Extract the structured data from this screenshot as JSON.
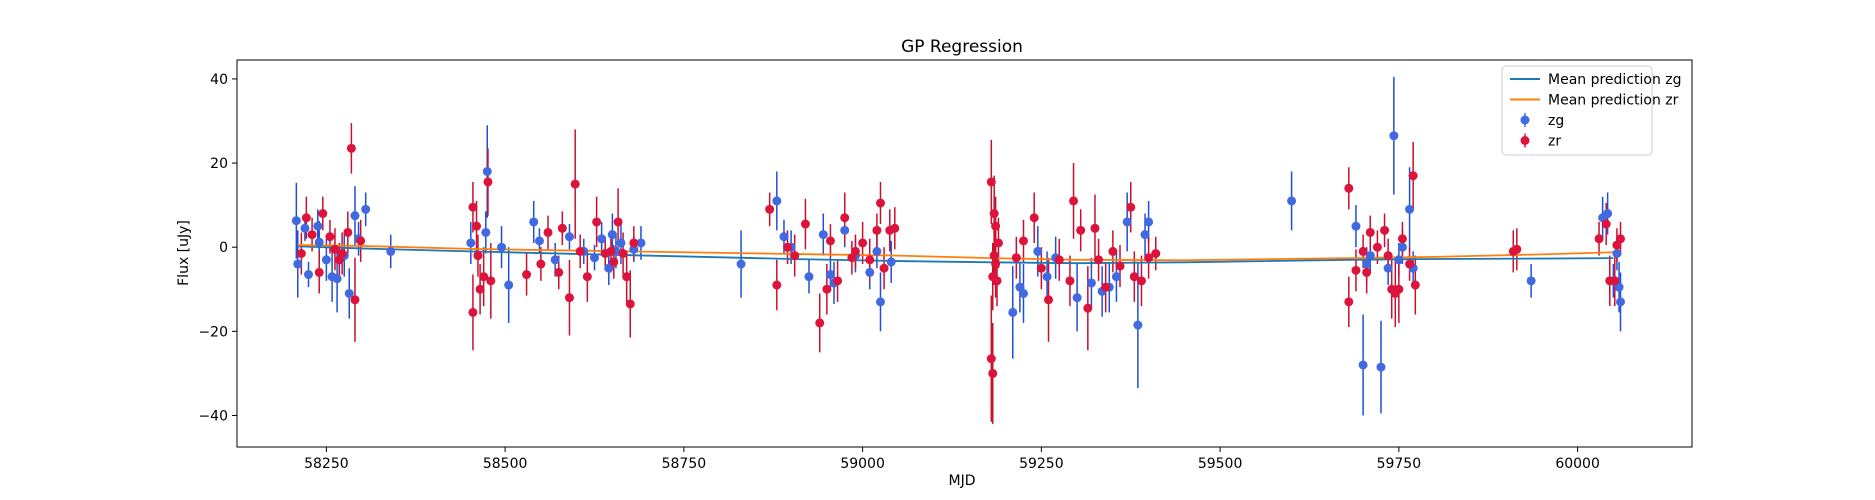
{
  "chart_data": {
    "type": "scatter",
    "title": "GP Regression",
    "xlabel": "MJD",
    "ylabel": "Flux [uJy]",
    "xlim": [
      58125,
      60160
    ],
    "ylim": [
      -47.5,
      44.5
    ],
    "xticks": [
      58250,
      58500,
      58750,
      59000,
      59250,
      59500,
      59750,
      60000
    ],
    "yticks": [
      -40,
      -20,
      0,
      20,
      40
    ],
    "grid": false,
    "legend_position": "top-right",
    "colors": {
      "zg_line": "#1f77b4",
      "zr_line": "#ff7f0e",
      "zg_points": "#4169e1",
      "zr_points": "#dc143c",
      "zg_errorbars": "#1f4fd6",
      "zr_errorbars": "#c8102e"
    },
    "lines": [
      {
        "name": "Mean prediction zg",
        "x": [
          58210,
          58300,
          58450,
          58600,
          58750,
          58900,
          59050,
          59180,
          59300,
          59450,
          59680,
          59800,
          59950,
          60050
        ],
        "y": [
          0.2,
          -0.3,
          -1.0,
          -1.6,
          -2.2,
          -2.8,
          -3.3,
          -3.6,
          -3.8,
          -3.6,
          -3.0,
          -2.8,
          -2.7,
          -2.6
        ]
      },
      {
        "name": "Mean prediction zr",
        "x": [
          58210,
          58300,
          58450,
          58600,
          58750,
          58900,
          59050,
          59180,
          59300,
          59450,
          59680,
          59800,
          59950,
          60050
        ],
        "y": [
          0.5,
          0.3,
          -0.4,
          -0.8,
          -1.2,
          -1.6,
          -2.0,
          -2.6,
          -3.0,
          -3.1,
          -2.6,
          -2.3,
          -1.7,
          -1.2
        ]
      }
    ],
    "series": [
      {
        "name": "zg",
        "points": [
          [
            58208,
            6.3,
            9
          ],
          [
            58210,
            -4.0,
            8
          ],
          [
            58220,
            4.5,
            3
          ],
          [
            58225,
            -6.5,
            3
          ],
          [
            58238,
            5.0,
            4
          ],
          [
            58240,
            1.2,
            5
          ],
          [
            58250,
            -3.0,
            5
          ],
          [
            58258,
            -7.0,
            6
          ],
          [
            58265,
            -7.5,
            8
          ],
          [
            58275,
            -2.0,
            5
          ],
          [
            58282,
            -11.0,
            6
          ],
          [
            58290,
            7.5,
            7
          ],
          [
            58295,
            2.0,
            4
          ],
          [
            58305,
            9.0,
            4
          ],
          [
            58340,
            -1.0,
            4
          ],
          [
            58452,
            1.0,
            5
          ],
          [
            58475,
            18.0,
            11
          ],
          [
            58473,
            3.5,
            5
          ],
          [
            58495,
            0.0,
            5
          ],
          [
            58505,
            -9.0,
            9
          ],
          [
            58540,
            6.0,
            5
          ],
          [
            58548,
            1.5,
            3
          ],
          [
            58570,
            -3.0,
            4
          ],
          [
            58590,
            2.5,
            3
          ],
          [
            58610,
            -1.0,
            3
          ],
          [
            58625,
            -2.5,
            3
          ],
          [
            58635,
            2.0,
            4
          ],
          [
            58645,
            -5.0,
            4
          ],
          [
            58650,
            3.0,
            5
          ],
          [
            58655,
            -1.0,
            4
          ],
          [
            58662,
            1.0,
            5
          ],
          [
            58680,
            -0.5,
            3
          ],
          [
            58690,
            1.0,
            4
          ],
          [
            58830,
            -4.0,
            8
          ],
          [
            58880,
            11.0,
            7
          ],
          [
            58890,
            2.5,
            4
          ],
          [
            58900,
            0.0,
            4
          ],
          [
            58925,
            -7.0,
            4
          ],
          [
            58945,
            3.0,
            5
          ],
          [
            58955,
            -6.5,
            4
          ],
          [
            58960,
            -8.5,
            5
          ],
          [
            58975,
            4.0,
            4
          ],
          [
            58990,
            -2.0,
            4
          ],
          [
            59010,
            -6.0,
            4
          ],
          [
            59020,
            -1.0,
            4
          ],
          [
            59025,
            -13.0,
            7
          ],
          [
            59040,
            -3.5,
            5
          ],
          [
            59210,
            -15.5,
            11
          ],
          [
            59220,
            -9.5,
            6
          ],
          [
            59225,
            -11.0,
            7
          ],
          [
            59245,
            -1.0,
            6
          ],
          [
            59258,
            -7.0,
            6
          ],
          [
            59270,
            -2.5,
            5
          ],
          [
            59300,
            -12.0,
            8
          ],
          [
            59320,
            -8.5,
            6
          ],
          [
            59335,
            -10.5,
            6
          ],
          [
            59345,
            -9.5,
            6
          ],
          [
            59355,
            -7.0,
            6
          ],
          [
            59370,
            6.0,
            7
          ],
          [
            59385,
            -18.5,
            15
          ],
          [
            59395,
            3.0,
            5
          ],
          [
            59400,
            6.0,
            5
          ],
          [
            59600,
            11.0,
            7
          ],
          [
            59690,
            5.0,
            5
          ],
          [
            59700,
            -28.0,
            12
          ],
          [
            59705,
            -4.0,
            4
          ],
          [
            59710,
            -2.0,
            4
          ],
          [
            59725,
            -28.5,
            11
          ],
          [
            59735,
            -5.0,
            4
          ],
          [
            59743,
            26.5,
            14
          ],
          [
            59750,
            -3.0,
            4
          ],
          [
            59755,
            0.0,
            4
          ],
          [
            59765,
            9.0,
            10
          ],
          [
            59770,
            -5.0,
            4
          ],
          [
            59935,
            -8.0,
            4
          ],
          [
            60035,
            7.0,
            5
          ],
          [
            60042,
            8.0,
            5
          ],
          [
            60050,
            -8.0,
            4
          ],
          [
            60055,
            -1.5,
            4
          ],
          [
            60058,
            -9.5,
            6
          ],
          [
            60060,
            -13.0,
            7
          ]
        ]
      },
      {
        "name": "zr",
        "points": [
          [
            58215,
            -1.5,
            5
          ],
          [
            58222,
            7.0,
            5
          ],
          [
            58230,
            3.0,
            4
          ],
          [
            58240,
            -6.0,
            5
          ],
          [
            58245,
            8.0,
            4
          ],
          [
            58255,
            2.5,
            4
          ],
          [
            58262,
            -0.5,
            5
          ],
          [
            58268,
            -3.0,
            4
          ],
          [
            58272,
            -1.5,
            5
          ],
          [
            58280,
            3.5,
            5
          ],
          [
            58285,
            23.5,
            6
          ],
          [
            58290,
            -12.5,
            10
          ],
          [
            58298,
            1.5,
            5
          ],
          [
            58455,
            9.5,
            6
          ],
          [
            58455,
            -15.5,
            9
          ],
          [
            58460,
            5.0,
            6
          ],
          [
            58462,
            -2.0,
            5
          ],
          [
            58465,
            -10.0,
            6
          ],
          [
            58470,
            -7.0,
            7
          ],
          [
            58476,
            15.5,
            8
          ],
          [
            58480,
            -8.0,
            9
          ],
          [
            58530,
            -6.5,
            5
          ],
          [
            58550,
            -4.0,
            4
          ],
          [
            58560,
            3.5,
            4
          ],
          [
            58575,
            -6.0,
            4
          ],
          [
            58580,
            4.5,
            4
          ],
          [
            58590,
            -12.0,
            9
          ],
          [
            58598,
            15.0,
            13
          ],
          [
            58605,
            -1.0,
            4
          ],
          [
            58615,
            -7.0,
            6
          ],
          [
            58628,
            6.0,
            6
          ],
          [
            58640,
            -1.5,
            4
          ],
          [
            58648,
            -1.0,
            5
          ],
          [
            58652,
            -3.5,
            4
          ],
          [
            58658,
            6.0,
            8
          ],
          [
            58665,
            -1.5,
            5
          ],
          [
            58670,
            -7.0,
            6
          ],
          [
            58675,
            -13.5,
            8
          ],
          [
            58680,
            1.0,
            4
          ],
          [
            58870,
            9.0,
            4
          ],
          [
            58880,
            -9.0,
            6
          ],
          [
            58895,
            0.0,
            4
          ],
          [
            58905,
            -2.0,
            5
          ],
          [
            58920,
            5.5,
            6
          ],
          [
            58940,
            -18.0,
            7
          ],
          [
            58950,
            -10.0,
            6
          ],
          [
            58955,
            1.5,
            4
          ],
          [
            58965,
            -8.0,
            5
          ],
          [
            58975,
            7.0,
            6
          ],
          [
            58985,
            -2.5,
            4
          ],
          [
            58990,
            -1.0,
            4
          ],
          [
            59000,
            1.0,
            5
          ],
          [
            59010,
            -3.0,
            5
          ],
          [
            59020,
            4.0,
            4
          ],
          [
            59025,
            10.5,
            5
          ],
          [
            59030,
            -5.0,
            5
          ],
          [
            59038,
            4.0,
            5
          ],
          [
            59045,
            4.5,
            5
          ],
          [
            59180,
            15.5,
            10
          ],
          [
            59180,
            -26.5,
            15
          ],
          [
            59182,
            -30.0,
            12
          ],
          [
            59182,
            -7.0,
            8
          ],
          [
            59184,
            8.0,
            9
          ],
          [
            59184,
            -2.0,
            7
          ],
          [
            59186,
            -4.0,
            8
          ],
          [
            59186,
            5.0,
            7
          ],
          [
            59188,
            -8.0,
            6
          ],
          [
            59190,
            1.0,
            6
          ],
          [
            59215,
            -2.5,
            5
          ],
          [
            59225,
            1.5,
            5
          ],
          [
            59240,
            7.0,
            6
          ],
          [
            59250,
            -5.0,
            5
          ],
          [
            59260,
            -12.5,
            10
          ],
          [
            59275,
            -3.0,
            5
          ],
          [
            59290,
            -8.0,
            6
          ],
          [
            59295,
            11.0,
            9
          ],
          [
            59305,
            4.0,
            5
          ],
          [
            59315,
            -14.5,
            10
          ],
          [
            59325,
            4.5,
            8
          ],
          [
            59330,
            -3.0,
            5
          ],
          [
            59340,
            -9.5,
            6
          ],
          [
            59350,
            -1.0,
            5
          ],
          [
            59360,
            -4.5,
            5
          ],
          [
            59375,
            9.5,
            6
          ],
          [
            59380,
            -7.0,
            6
          ],
          [
            59390,
            -8.0,
            6
          ],
          [
            59400,
            -2.5,
            5
          ],
          [
            59410,
            -1.5,
            4
          ],
          [
            59680,
            14.0,
            5
          ],
          [
            59680,
            -13.0,
            6
          ],
          [
            59690,
            -5.5,
            5
          ],
          [
            59700,
            -1.0,
            4
          ],
          [
            59705,
            -6.0,
            5
          ],
          [
            59710,
            3.5,
            4
          ],
          [
            59720,
            0.0,
            4
          ],
          [
            59730,
            4.0,
            4
          ],
          [
            59735,
            -2.0,
            4
          ],
          [
            59740,
            -10.0,
            7
          ],
          [
            59745,
            -11.0,
            8
          ],
          [
            59750,
            -10.0,
            8
          ],
          [
            59755,
            2.0,
            4
          ],
          [
            59765,
            -4.0,
            4
          ],
          [
            59770,
            17.0,
            8
          ],
          [
            59773,
            -9.0,
            7
          ],
          [
            59910,
            -1.0,
            5
          ],
          [
            59915,
            -0.5,
            5
          ],
          [
            60030,
            2.0,
            4
          ],
          [
            60040,
            5.5,
            5
          ],
          [
            60045,
            -8.0,
            6
          ],
          [
            60052,
            -8.0,
            6
          ],
          [
            60055,
            0.5,
            4
          ],
          [
            60060,
            2.0,
            4
          ]
        ]
      }
    ],
    "legend": [
      {
        "label": "Mean prediction zg",
        "kind": "line",
        "color": "#1f77b4"
      },
      {
        "label": "Mean prediction zr",
        "kind": "line",
        "color": "#ff7f0e"
      },
      {
        "label": "zg",
        "kind": "errorbar",
        "color": "#4169e1"
      },
      {
        "label": "zr",
        "kind": "errorbar",
        "color": "#dc143c"
      }
    ]
  }
}
